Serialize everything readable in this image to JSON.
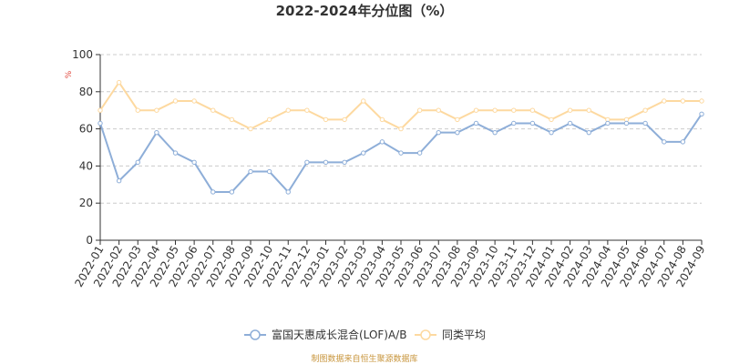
{
  "colors": {
    "series_fund": "#8eaed8",
    "series_avg": "#fdd9a0",
    "grid": "#cccccc",
    "axis": "#333333",
    "unit": "#e0453a",
    "source": "#c8963e"
  },
  "source_text": "制图数据来自恒生聚源数据库",
  "chart_data": {
    "type": "line",
    "title": "2022-2024年分位图（%）",
    "y_unit_label": "%",
    "xlabel": "",
    "ylabel": "",
    "ylim": [
      0,
      100
    ],
    "yticks": [
      0,
      20,
      40,
      60,
      80,
      100
    ],
    "grid": true,
    "legend_position": "bottom",
    "categories": [
      "2022-01",
      "2022-02",
      "2022-03",
      "2022-04",
      "2022-05",
      "2022-06",
      "2022-07",
      "2022-08",
      "2022-09",
      "2022-10",
      "2022-11",
      "2022-12",
      "2023-01",
      "2023-02",
      "2023-03",
      "2023-04",
      "2023-05",
      "2023-06",
      "2023-07",
      "2023-08",
      "2023-09",
      "2023-10",
      "2023-11",
      "2023-12",
      "2024-01",
      "2024-02",
      "2024-03",
      "2024-04",
      "2024-05",
      "2024-06",
      "2024-07",
      "2024-08",
      "2024-09"
    ],
    "series": [
      {
        "name": "富国天惠成长混合(LOF)A/B",
        "color": "#8eaed8",
        "values": [
          63,
          32,
          42,
          58,
          47,
          42,
          26,
          26,
          37,
          37,
          26,
          42,
          42,
          42,
          47,
          53,
          47,
          47,
          58,
          58,
          63,
          58,
          63,
          63,
          58,
          63,
          58,
          63,
          63,
          63,
          53,
          53,
          68
        ]
      },
      {
        "name": "同类平均",
        "color": "#fdd9a0",
        "values": [
          70,
          85,
          70,
          70,
          75,
          75,
          70,
          65,
          60,
          65,
          70,
          70,
          65,
          65,
          75,
          65,
          60,
          70,
          70,
          65,
          70,
          70,
          70,
          70,
          65,
          70,
          70,
          65,
          65,
          70,
          75,
          75,
          75
        ]
      }
    ]
  }
}
